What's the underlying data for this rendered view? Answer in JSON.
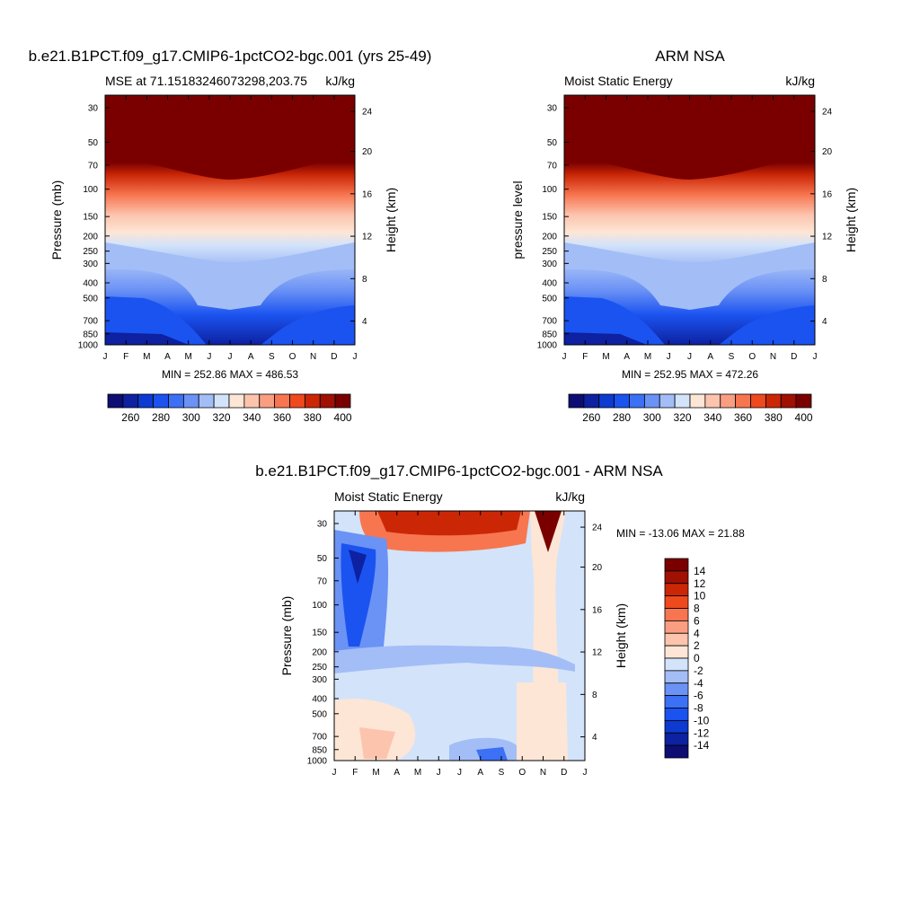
{
  "levels": [
    {
      "xlabels": [
        "J",
        "F",
        "M",
        "A",
        "M",
        "J",
        "J",
        "A",
        "S",
        "O",
        "N",
        "D",
        "J"
      ]
    }
  ],
  "pressure_ticks": [
    "30",
    "50",
    "70",
    "100",
    "150",
    "200",
    "250",
    "300",
    "400",
    "500",
    "700",
    "850",
    "1000"
  ],
  "height_ticks": [
    "24",
    "20",
    "16",
    "12",
    "8",
    "4"
  ],
  "panels": {
    "model": {
      "title": "b.e21.B1PCT.f09_g17.CMIP6-1pctCO2-bgc.001 (yrs 25-49)",
      "left": "MSE at 71.15183246073298,203.75",
      "right": "kJ/kg",
      "ylabel": "Pressure (mb)",
      "y2label": "Height (km)",
      "minmax": "MIN = 252.86 MAX = 486.53"
    },
    "obs": {
      "title": "ARM NSA",
      "left": "Moist Static Energy",
      "right": "kJ/kg",
      "ylabel": "pressure level",
      "y2label": "Height (km)",
      "minmax": "MIN = 252.95 MAX = 472.26"
    },
    "diff": {
      "title": "b.e21.B1PCT.f09_g17.CMIP6-1pctCO2-bgc.001 - ARM NSA",
      "left": "Moist Static Energy",
      "right": "kJ/kg",
      "ylabel": "Pressure (mb)",
      "y2label": "Height (km)",
      "minmax": "MIN = -13.06 MAX =  21.88"
    }
  },
  "chart_data": [
    {
      "type": "heatmap",
      "title": "b.e21.B1PCT.f09_g17.CMIP6-1pctCO2-bgc.001 (yrs 25-49)",
      "xlabel": "",
      "ylabel": "Pressure (mb)",
      "x": [
        "J",
        "F",
        "M",
        "A",
        "M",
        "J",
        "J",
        "A",
        "S",
        "O",
        "N",
        "D",
        "J"
      ],
      "y": [
        30,
        50,
        70,
        100,
        150,
        200,
        250,
        300,
        400,
        500,
        700,
        850,
        1000
      ],
      "y_scale": "log",
      "colorbar_ticks": [
        "260",
        "280",
        "300",
        "320",
        "340",
        "360",
        "380",
        "400"
      ],
      "colors": [
        "#0d0d73",
        "#0d21a1",
        "#0d3ad1",
        "#1b53f0",
        "#3c70f5",
        "#6b92f5",
        "#a3bdf7",
        "#d3e3fa",
        "#fde6d6",
        "#fcc4ad",
        "#fa9e82",
        "#f77650",
        "#ee4a1e",
        "#cb2707",
        "#a01003",
        "#7a0000"
      ],
      "min": 252.86,
      "max": 486.53
    },
    {
      "type": "heatmap",
      "title": "ARM NSA",
      "xlabel": "",
      "ylabel": "pressure level",
      "x": [
        "J",
        "F",
        "M",
        "A",
        "M",
        "J",
        "J",
        "A",
        "S",
        "O",
        "N",
        "D",
        "J"
      ],
      "y": [
        30,
        50,
        70,
        100,
        150,
        200,
        250,
        300,
        400,
        500,
        700,
        850,
        1000
      ],
      "y_scale": "log",
      "min": 252.95,
      "max": 472.26
    },
    {
      "type": "heatmap",
      "title": "b.e21.B1PCT.f09_g17.CMIP6-1pctCO2-bgc.001 - ARM NSA",
      "xlabel": "",
      "ylabel": "Pressure (mb)",
      "x": [
        "J",
        "F",
        "M",
        "A",
        "M",
        "J",
        "J",
        "A",
        "S",
        "O",
        "N",
        "D",
        "J"
      ],
      "y": [
        30,
        50,
        70,
        100,
        150,
        200,
        250,
        300,
        400,
        500,
        700,
        850,
        1000
      ],
      "y_scale": "log",
      "colorbar_ticks": [
        "14",
        "12",
        "10",
        "8",
        "6",
        "4",
        "2",
        "0",
        "-2",
        "-4",
        "-6",
        "-8",
        "-10",
        "-12",
        "-14"
      ],
      "colors": [
        "#7a0000",
        "#a01003",
        "#cb2707",
        "#ee4a1e",
        "#f77650",
        "#fa9e82",
        "#fcc4ad",
        "#fde6d6",
        "#d3e3fa",
        "#a3bdf7",
        "#6b92f5",
        "#3c70f5",
        "#1b53f0",
        "#0d3ad1",
        "#0d21a1",
        "#0d0d73"
      ],
      "min": -13.06,
      "max": 21.88
    }
  ]
}
